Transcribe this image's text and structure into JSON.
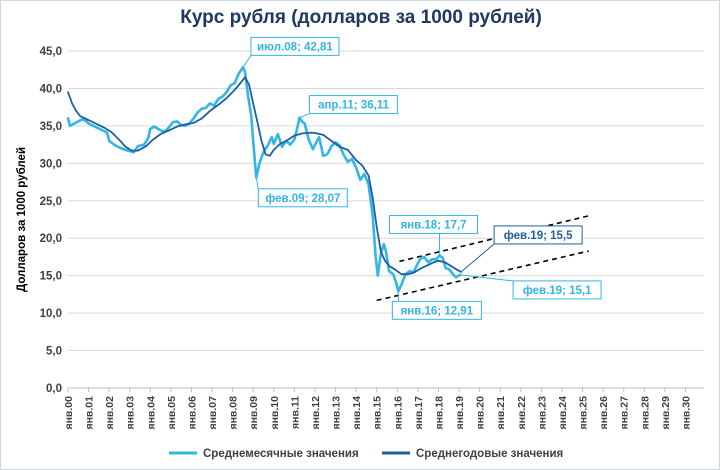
{
  "chart_data": {
    "type": "line",
    "title": "Курс рубля (долларов за 1000 рублей)",
    "ylabel": "Долларов за 1000 рублей",
    "ylim": [
      0,
      45
    ],
    "yticks": [
      "0,0",
      "5,0",
      "10,0",
      "15,0",
      "20,0",
      "25,0",
      "30,0",
      "35,0",
      "40,0",
      "45,0"
    ],
    "x_labels": [
      "янв.00",
      "янв.01",
      "янв.02",
      "янв.03",
      "янв.04",
      "янв.05",
      "янв.06",
      "янв.07",
      "янв.08",
      "янв.09",
      "янв.10",
      "янв.11",
      "янв.12",
      "янв.13",
      "янв.14",
      "янв.15",
      "янв.16",
      "янв.17",
      "янв.18",
      "янв.19",
      "янв.20",
      "янв.21",
      "янв.22",
      "янв.23",
      "янв.24",
      "янв.25",
      "янв.26",
      "янв.27",
      "янв.28",
      "янв.29",
      "янв.30"
    ],
    "xlim": [
      2000,
      2030.9
    ],
    "grid": true,
    "legend_position": "bottom",
    "series": [
      {
        "name": "Среднемесячные значения",
        "color": "#33b5e5",
        "points": [
          [
            2000.0,
            36.0
          ],
          [
            2000.1,
            35.0
          ],
          [
            2000.3,
            35.3
          ],
          [
            2000.5,
            35.6
          ],
          [
            2000.7,
            35.9
          ],
          [
            2000.9,
            35.6
          ],
          [
            2001.0,
            35.3
          ],
          [
            2001.3,
            34.9
          ],
          [
            2001.6,
            34.5
          ],
          [
            2001.9,
            34.1
          ],
          [
            2002.0,
            33.0
          ],
          [
            2002.3,
            32.4
          ],
          [
            2002.6,
            32.0
          ],
          [
            2002.9,
            31.7
          ],
          [
            2003.2,
            31.5
          ],
          [
            2003.4,
            32.3
          ],
          [
            2003.7,
            32.5
          ],
          [
            2003.9,
            33.4
          ],
          [
            2004.0,
            34.6
          ],
          [
            2004.2,
            34.9
          ],
          [
            2004.5,
            34.4
          ],
          [
            2004.7,
            34.2
          ],
          [
            2004.9,
            34.8
          ],
          [
            2005.1,
            35.5
          ],
          [
            2005.3,
            35.6
          ],
          [
            2005.5,
            35.1
          ],
          [
            2005.7,
            35.0
          ],
          [
            2005.9,
            35.3
          ],
          [
            2006.1,
            36.0
          ],
          [
            2006.3,
            36.8
          ],
          [
            2006.5,
            37.3
          ],
          [
            2006.7,
            37.4
          ],
          [
            2006.9,
            38.0
          ],
          [
            2007.1,
            37.7
          ],
          [
            2007.3,
            38.6
          ],
          [
            2007.5,
            38.9
          ],
          [
            2007.7,
            39.5
          ],
          [
            2007.9,
            40.4
          ],
          [
            2008.1,
            40.7
          ],
          [
            2008.3,
            42.0
          ],
          [
            2008.5,
            42.81
          ],
          [
            2008.6,
            42.2
          ],
          [
            2008.75,
            39.0
          ],
          [
            2008.9,
            36.4
          ],
          [
            2009.0,
            33.0
          ],
          [
            2009.15,
            28.07
          ],
          [
            2009.3,
            30.0
          ],
          [
            2009.5,
            31.5
          ],
          [
            2009.7,
            32.4
          ],
          [
            2009.9,
            33.5
          ],
          [
            2010.0,
            32.6
          ],
          [
            2010.2,
            33.9
          ],
          [
            2010.4,
            32.2
          ],
          [
            2010.6,
            33.0
          ],
          [
            2010.8,
            32.5
          ],
          [
            2011.0,
            33.2
          ],
          [
            2011.1,
            34.3
          ],
          [
            2011.25,
            36.11
          ],
          [
            2011.4,
            35.5
          ],
          [
            2011.5,
            35.3
          ],
          [
            2011.7,
            33.1
          ],
          [
            2011.9,
            31.9
          ],
          [
            2012.0,
            32.5
          ],
          [
            2012.2,
            33.5
          ],
          [
            2012.4,
            31.0
          ],
          [
            2012.6,
            31.2
          ],
          [
            2012.8,
            32.3
          ],
          [
            2013.0,
            32.8
          ],
          [
            2013.2,
            32.4
          ],
          [
            2013.4,
            31.1
          ],
          [
            2013.6,
            30.2
          ],
          [
            2013.8,
            30.6
          ],
          [
            2014.0,
            29.4
          ],
          [
            2014.2,
            27.8
          ],
          [
            2014.4,
            28.6
          ],
          [
            2014.6,
            27.2
          ],
          [
            2014.8,
            23.2
          ],
          [
            2014.95,
            17.5
          ],
          [
            2015.05,
            15.0
          ],
          [
            2015.2,
            18.0
          ],
          [
            2015.35,
            19.2
          ],
          [
            2015.45,
            18.2
          ],
          [
            2015.6,
            15.6
          ],
          [
            2015.8,
            15.2
          ],
          [
            2015.95,
            14.0
          ],
          [
            2016.05,
            12.91
          ],
          [
            2016.2,
            13.8
          ],
          [
            2016.4,
            15.2
          ],
          [
            2016.6,
            15.6
          ],
          [
            2016.8,
            15.5
          ],
          [
            2016.95,
            16.4
          ],
          [
            2017.1,
            17.2
          ],
          [
            2017.3,
            17.5
          ],
          [
            2017.5,
            16.8
          ],
          [
            2017.7,
            17.2
          ],
          [
            2017.9,
            17.2
          ],
          [
            2018.05,
            17.7
          ],
          [
            2018.2,
            17.4
          ],
          [
            2018.35,
            16.0
          ],
          [
            2018.5,
            15.9
          ],
          [
            2018.7,
            15.2
          ],
          [
            2018.85,
            14.8
          ],
          [
            2019.05,
            15.1
          ]
        ]
      },
      {
        "name": "Среднегодовые значения",
        "color": "#1f5fa0",
        "points": [
          [
            2000.0,
            39.5
          ],
          [
            2000.2,
            38.0
          ],
          [
            2000.4,
            37.0
          ],
          [
            2000.6,
            36.3
          ],
          [
            2000.9,
            35.9
          ],
          [
            2001.2,
            35.5
          ],
          [
            2001.5,
            35.1
          ],
          [
            2001.8,
            34.7
          ],
          [
            2002.1,
            34.2
          ],
          [
            2002.5,
            33.1
          ],
          [
            2002.8,
            32.2
          ],
          [
            2003.1,
            31.7
          ],
          [
            2003.4,
            31.7
          ],
          [
            2003.8,
            32.3
          ],
          [
            2004.1,
            33.1
          ],
          [
            2004.5,
            33.9
          ],
          [
            2004.9,
            34.4
          ],
          [
            2005.3,
            34.9
          ],
          [
            2005.7,
            35.2
          ],
          [
            2006.1,
            35.4
          ],
          [
            2006.5,
            36.0
          ],
          [
            2006.9,
            37.0
          ],
          [
            2007.3,
            37.8
          ],
          [
            2007.7,
            38.7
          ],
          [
            2008.1,
            39.8
          ],
          [
            2008.4,
            40.8
          ],
          [
            2008.6,
            41.5
          ],
          [
            2008.8,
            40.5
          ],
          [
            2009.0,
            38.0
          ],
          [
            2009.2,
            35.5
          ],
          [
            2009.4,
            33.0
          ],
          [
            2009.6,
            31.2
          ],
          [
            2009.8,
            31.0
          ],
          [
            2010.0,
            31.8
          ],
          [
            2010.3,
            32.6
          ],
          [
            2010.6,
            33.0
          ],
          [
            2011.0,
            33.7
          ],
          [
            2011.4,
            34.0
          ],
          [
            2011.8,
            34.1
          ],
          [
            2012.1,
            34.0
          ],
          [
            2012.4,
            33.8
          ],
          [
            2012.8,
            33.0
          ],
          [
            2013.2,
            32.2
          ],
          [
            2013.6,
            31.8
          ],
          [
            2014.0,
            30.4
          ],
          [
            2014.3,
            29.7
          ],
          [
            2014.6,
            28.4
          ],
          [
            2014.8,
            25.5
          ],
          [
            2015.0,
            21.5
          ],
          [
            2015.2,
            18.2
          ],
          [
            2015.4,
            17.0
          ],
          [
            2015.6,
            16.3
          ],
          [
            2015.9,
            15.8
          ],
          [
            2016.2,
            15.2
          ],
          [
            2016.5,
            15.2
          ],
          [
            2016.8,
            15.4
          ],
          [
            2017.1,
            15.9
          ],
          [
            2017.4,
            16.3
          ],
          [
            2017.7,
            16.7
          ],
          [
            2018.0,
            17.0
          ],
          [
            2018.3,
            16.8
          ],
          [
            2018.6,
            16.3
          ],
          [
            2018.9,
            15.8
          ],
          [
            2019.1,
            15.5
          ]
        ]
      }
    ],
    "trend_lines": [
      {
        "style": "dashed",
        "color": "#000000",
        "points": [
          [
            2016.1,
            16.9
          ],
          [
            2025.3,
            23.0
          ]
        ]
      },
      {
        "style": "dashed",
        "color": "#000000",
        "points": [
          [
            2015.0,
            11.7
          ],
          [
            2025.3,
            18.3
          ]
        ]
      }
    ],
    "annotations": [
      {
        "text": "июл.08; 42,81",
        "x": 2008.5,
        "y": 42.81,
        "color": "#33b5e5"
      },
      {
        "text": "апр.11; 36,11",
        "x": 2011.25,
        "y": 36.11,
        "color": "#33b5e5"
      },
      {
        "text": "фев.09; 28,07",
        "x": 2009.15,
        "y": 28.07,
        "color": "#33b5e5"
      },
      {
        "text": "янв.18;   17,7",
        "x": 2018.05,
        "y": 17.7,
        "color": "#33b5e5"
      },
      {
        "text": "фев.19;   15,5",
        "x": 2019.1,
        "y": 15.5,
        "color": "#1f5fa0"
      },
      {
        "text": "фев.19;   15,1",
        "x": 2019.05,
        "y": 15.1,
        "color": "#33b5e5"
      },
      {
        "text": "янв.16; 12,91",
        "x": 2016.05,
        "y": 12.91,
        "color": "#33b5e5"
      }
    ]
  }
}
